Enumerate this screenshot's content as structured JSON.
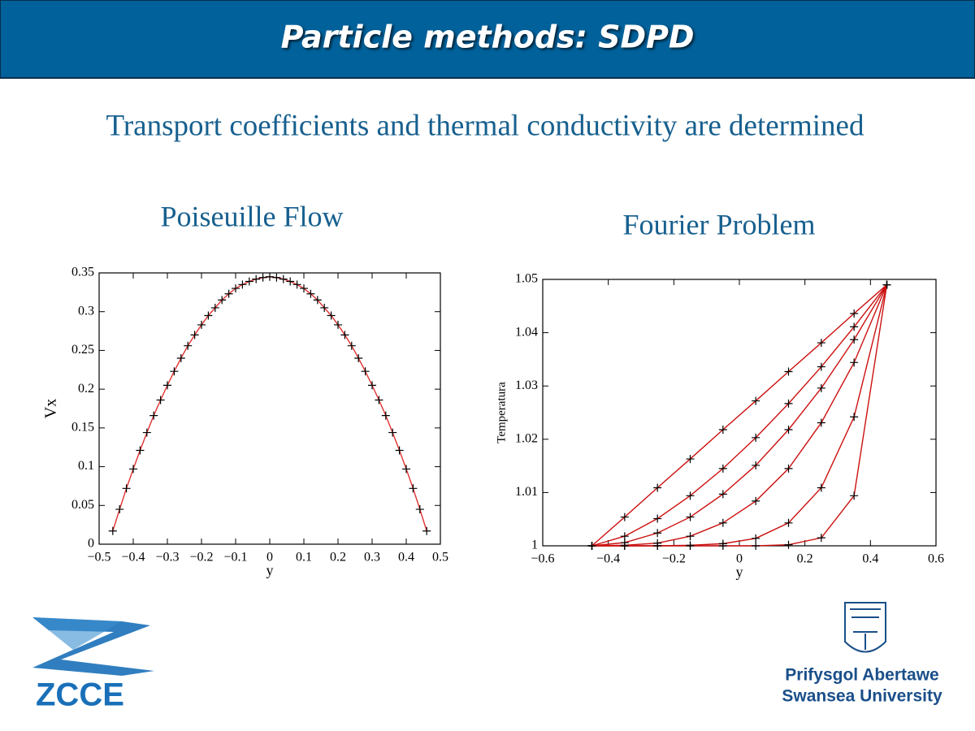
{
  "header": {
    "title": "Particle methods: SDPD"
  },
  "subtitle": "Transport coefficients and thermal conductivity are determined",
  "logos": {
    "left": "ZCCE",
    "right_line1": "Prifysgol Abertawe",
    "right_line2": "Swansea University"
  },
  "chart_data": [
    {
      "type": "line",
      "title": "Poiseuille Flow",
      "x_label": "y",
      "y_label": "Vx",
      "line_color": "#e03030",
      "marker_color": "#000000",
      "x": [
        -0.46,
        -0.44,
        -0.42,
        -0.4,
        -0.38,
        -0.36,
        -0.34,
        -0.32,
        -0.3,
        -0.28,
        -0.26,
        -0.24,
        -0.22,
        -0.2,
        -0.18,
        -0.16,
        -0.14,
        -0.12,
        -0.1,
        -0.08,
        -0.06,
        -0.04,
        -0.02,
        0,
        0.02,
        0.04,
        0.06,
        0.08,
        0.1,
        0.12,
        0.14,
        0.16,
        0.18,
        0.2,
        0.22,
        0.24,
        0.26,
        0.28,
        0.3,
        0.32,
        0.34,
        0.36,
        0.38,
        0.4,
        0.42,
        0.44,
        0.46
      ],
      "series": [
        {
          "values": [
            0.017,
            0.045,
            0.072,
            0.097,
            0.121,
            0.144,
            0.166,
            0.186,
            0.205,
            0.223,
            0.24,
            0.256,
            0.27,
            0.283,
            0.295,
            0.305,
            0.315,
            0.323,
            0.33,
            0.335,
            0.339,
            0.342,
            0.344,
            0.345,
            0.344,
            0.342,
            0.339,
            0.335,
            0.33,
            0.323,
            0.315,
            0.305,
            0.295,
            0.283,
            0.27,
            0.256,
            0.24,
            0.223,
            0.205,
            0.186,
            0.166,
            0.144,
            0.121,
            0.097,
            0.072,
            0.045,
            0.017
          ]
        }
      ],
      "xlim": [
        -0.5,
        0.5
      ],
      "xticks": [
        {
          "value": -0.5,
          "label": "−0.5"
        },
        {
          "value": -0.4,
          "label": "−0.4"
        },
        {
          "value": -0.3,
          "label": "−0.3"
        },
        {
          "value": -0.2,
          "label": "−0.2"
        },
        {
          "value": -0.1,
          "label": "−0.1"
        },
        0,
        0.1,
        0.2,
        0.3,
        0.4,
        0.5
      ],
      "ylim": [
        0,
        0.35
      ],
      "yticks": [
        0,
        0.05,
        0.1,
        0.15,
        0.2,
        0.25,
        0.3,
        0.35
      ]
    },
    {
      "type": "line",
      "title": "Fourier Problem",
      "x_label": "y",
      "y_label": "Temperatura",
      "line_color": "#cc1010",
      "marker_color": "#000000",
      "x": [
        -0.45,
        -0.35,
        -0.25,
        -0.15,
        -0.05,
        0.05,
        0.15,
        0.25,
        0.35,
        0.45
      ],
      "series": [
        {
          "values": [
            1,
            1.0054,
            1.0109,
            1.0163,
            1.0218,
            1.0272,
            1.0327,
            1.0381,
            1.0436,
            1.049
          ]
        },
        {
          "values": [
            1,
            1.0018,
            1.0051,
            1.0094,
            1.0145,
            1.0203,
            1.0267,
            1.0336,
            1.0411,
            1.049
          ]
        },
        {
          "values": [
            1,
            1.0006,
            1.0024,
            1.0054,
            1.0097,
            1.0151,
            1.0218,
            1.0296,
            1.0387,
            1.049
          ]
        },
        {
          "values": [
            1,
            1.0001,
            1.0005,
            1.0018,
            1.0043,
            1.0084,
            1.0145,
            1.0231,
            1.0344,
            1.049
          ]
        },
        {
          "values": [
            1,
            1,
            1,
            1.0001,
            1.0004,
            1.0014,
            1.0043,
            1.0109,
            1.0242,
            1.049
          ]
        },
        {
          "values": [
            1,
            1,
            1,
            1,
            1,
            1,
            1.0002,
            1.0015,
            1.0094,
            1.049
          ]
        }
      ],
      "xlim": [
        -0.6,
        0.6
      ],
      "xticks": [
        {
          "value": -0.6,
          "label": "−0.6"
        },
        {
          "value": -0.4,
          "label": "−0.4"
        },
        {
          "value": -0.2,
          "label": "−0.2"
        },
        0,
        0.2,
        0.4,
        0.6
      ],
      "ylim": [
        1,
        1.05
      ],
      "yticks": [
        1,
        1.01,
        1.02,
        1.03,
        1.04,
        1.05
      ]
    }
  ]
}
